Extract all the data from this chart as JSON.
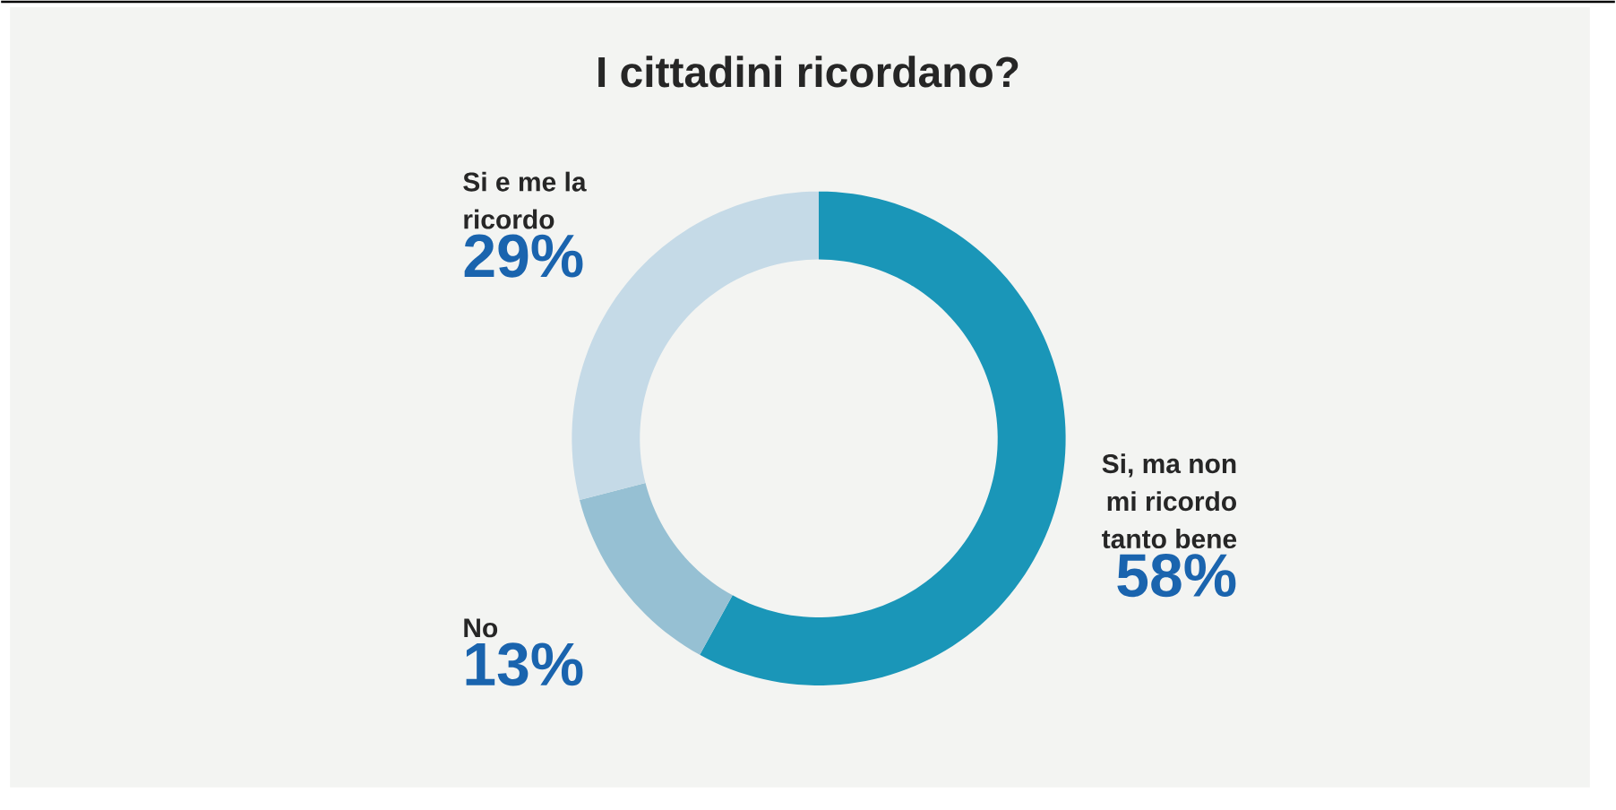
{
  "chart_data": {
    "type": "donut",
    "title": "I cittadini ricordano?",
    "categories": [
      "Si, ma non mi ricordo tanto bene",
      "No",
      "Si e me la ricordo"
    ],
    "values": [
      58,
      13,
      29
    ],
    "colors": [
      "#1a96b8",
      "#96c0d3",
      "#c5dae7"
    ],
    "value_labels": [
      "58%",
      "13%",
      "29%"
    ]
  }
}
